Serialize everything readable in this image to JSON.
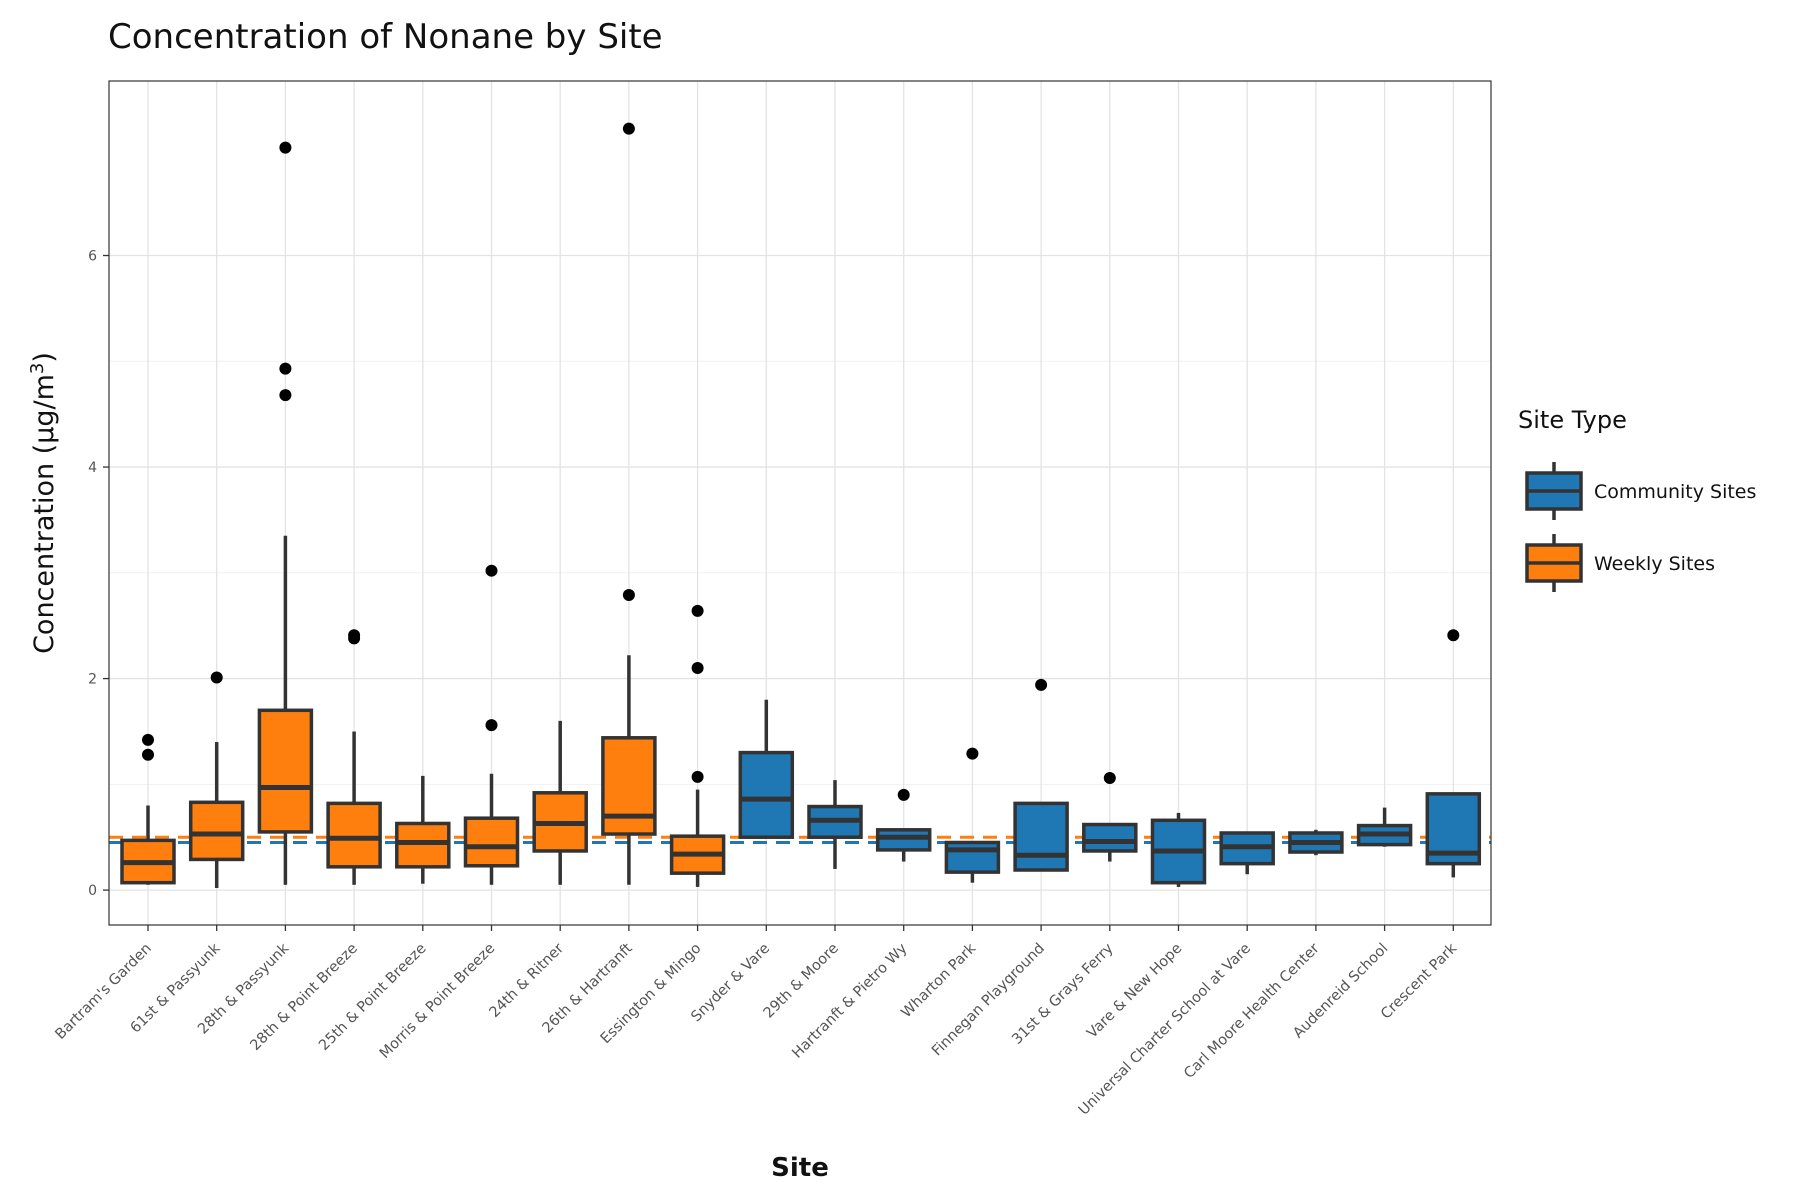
{
  "chart_data": {
    "type": "box",
    "title": "Concentration of Nonane by Site",
    "xlabel": "Site",
    "ylabel": "Concentration (µg/m",
    "ylabel_superscript": "3",
    "ylabel_close": ")",
    "ylim": [
      -0.33,
      7.65
    ],
    "yticks": [
      0,
      2,
      4,
      6
    ],
    "grid": true,
    "legend": {
      "title": "Site Type",
      "placement": "right",
      "entries": [
        {
          "name": "Community Sites",
          "color": "#1f77b4"
        },
        {
          "name": "Weekly Sites",
          "color": "#ff7f0e"
        }
      ]
    },
    "reference_lines": [
      {
        "group": "Weekly Sites",
        "y": 0.5,
        "color": "#ff7f0e",
        "style": "dashed"
      },
      {
        "group": "Community Sites",
        "y": 0.45,
        "color": "#1f77b4",
        "style": "dashed"
      }
    ],
    "boxes": [
      {
        "site": "Bartram's Garden",
        "group": "Weekly Sites",
        "whisker_low": 0.05,
        "q1": 0.07,
        "median": 0.26,
        "q3": 0.47,
        "whisker_high": 0.8,
        "outliers": [
          1.42,
          1.28
        ]
      },
      {
        "site": "61st & Passyunk",
        "group": "Weekly Sites",
        "whisker_low": 0.02,
        "q1": 0.29,
        "median": 0.53,
        "q3": 0.83,
        "whisker_high": 1.4,
        "outliers": [
          2.01
        ]
      },
      {
        "site": "28th & Passyunk",
        "group": "Weekly Sites",
        "whisker_low": 0.05,
        "q1": 0.55,
        "median": 0.97,
        "q3": 1.7,
        "whisker_high": 3.35,
        "outliers": [
          7.02,
          4.93,
          4.68
        ]
      },
      {
        "site": "28th & Point Breeze",
        "group": "Weekly Sites",
        "whisker_low": 0.05,
        "q1": 0.22,
        "median": 0.49,
        "q3": 0.82,
        "whisker_high": 1.5,
        "outliers": [
          2.41,
          2.38
        ]
      },
      {
        "site": "25th & Point Breeze",
        "group": "Weekly Sites",
        "whisker_low": 0.06,
        "q1": 0.22,
        "median": 0.45,
        "q3": 0.63,
        "whisker_high": 1.08,
        "outliers": []
      },
      {
        "site": "Morris & Point Breeze",
        "group": "Weekly Sites",
        "whisker_low": 0.05,
        "q1": 0.23,
        "median": 0.41,
        "q3": 0.68,
        "whisker_high": 1.1,
        "outliers": [
          3.02,
          1.56
        ]
      },
      {
        "site": "24th & Ritner",
        "group": "Weekly Sites",
        "whisker_low": 0.05,
        "q1": 0.37,
        "median": 0.63,
        "q3": 0.92,
        "whisker_high": 1.6,
        "outliers": []
      },
      {
        "site": "26th & Hartranft",
        "group": "Weekly Sites",
        "whisker_low": 0.05,
        "q1": 0.53,
        "median": 0.7,
        "q3": 1.44,
        "whisker_high": 2.22,
        "outliers": [
          7.2,
          2.79
        ]
      },
      {
        "site": "Essington & Mingo",
        "group": "Weekly Sites",
        "whisker_low": 0.03,
        "q1": 0.16,
        "median": 0.34,
        "q3": 0.51,
        "whisker_high": 0.95,
        "outliers": [
          2.64,
          2.1,
          1.07
        ]
      },
      {
        "site": "Snyder & Vare",
        "group": "Community Sites",
        "whisker_low": 0.5,
        "q1": 0.5,
        "median": 0.86,
        "q3": 1.3,
        "whisker_high": 1.8,
        "outliers": []
      },
      {
        "site": "29th & Moore",
        "group": "Community Sites",
        "whisker_low": 0.2,
        "q1": 0.5,
        "median": 0.66,
        "q3": 0.79,
        "whisker_high": 1.04,
        "outliers": []
      },
      {
        "site": "Hartranft & Pietro Wy",
        "group": "Community Sites",
        "whisker_low": 0.27,
        "q1": 0.38,
        "median": 0.5,
        "q3": 0.57,
        "whisker_high": 0.57,
        "outliers": [
          0.9
        ]
      },
      {
        "site": "Wharton Park",
        "group": "Community Sites",
        "whisker_low": 0.07,
        "q1": 0.17,
        "median": 0.38,
        "q3": 0.45,
        "whisker_high": 0.45,
        "outliers": [
          1.29
        ]
      },
      {
        "site": "Finnegan Playground",
        "group": "Community Sites",
        "whisker_low": 0.19,
        "q1": 0.19,
        "median": 0.33,
        "q3": 0.82,
        "whisker_high": 0.82,
        "outliers": [
          1.94
        ]
      },
      {
        "site": "31st & Grays Ferry",
        "group": "Community Sites",
        "whisker_low": 0.27,
        "q1": 0.37,
        "median": 0.46,
        "q3": 0.62,
        "whisker_high": 0.62,
        "outliers": [
          1.06
        ]
      },
      {
        "site": "Vare & New Hope",
        "group": "Community Sites",
        "whisker_low": 0.03,
        "q1": 0.07,
        "median": 0.37,
        "q3": 0.66,
        "whisker_high": 0.73,
        "outliers": []
      },
      {
        "site": "Universal Charter School at Vare",
        "group": "Community Sites",
        "whisker_low": 0.15,
        "q1": 0.25,
        "median": 0.41,
        "q3": 0.54,
        "whisker_high": 0.54,
        "outliers": []
      },
      {
        "site": "Carl Moore Health Center",
        "group": "Community Sites",
        "whisker_low": 0.33,
        "q1": 0.36,
        "median": 0.45,
        "q3": 0.54,
        "whisker_high": 0.57,
        "outliers": []
      },
      {
        "site": "Audenreid School",
        "group": "Community Sites",
        "whisker_low": 0.41,
        "q1": 0.43,
        "median": 0.53,
        "q3": 0.61,
        "whisker_high": 0.78,
        "outliers": []
      },
      {
        "site": "Crescent Park",
        "group": "Community Sites",
        "whisker_low": 0.12,
        "q1": 0.25,
        "median": 0.35,
        "q3": 0.91,
        "whisker_high": 0.91,
        "outliers": [
          2.41
        ]
      }
    ]
  }
}
